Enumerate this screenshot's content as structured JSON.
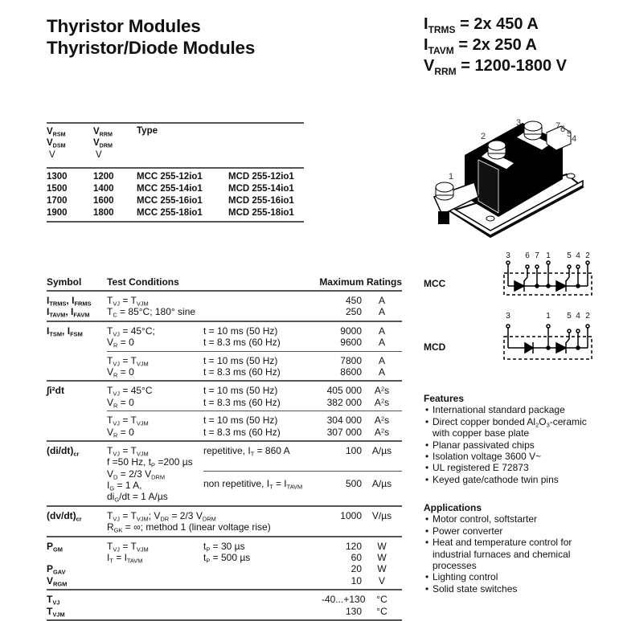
{
  "title": {
    "line1": "Thyristor Modules",
    "line2": "Thyristor/Diode Modules"
  },
  "key_ratings": [
    [
      "I",
      {
        "sub": "TRMS"
      },
      " = 2x 450 A"
    ],
    [
      "I",
      {
        "sub": "TAVM"
      },
      " = 2x 250 A"
    ],
    [
      "V",
      {
        "sub": "RRM"
      },
      " = 1200-1800 V"
    ]
  ],
  "type_table": {
    "col1": [
      [
        "V",
        {
          "sub": "RSM"
        }
      ],
      [
        "V",
        {
          "sub": "DSM"
        }
      ]
    ],
    "col2": [
      [
        "V",
        {
          "sub": "RRM"
        }
      ],
      [
        "V",
        {
          "sub": "DRM"
        }
      ]
    ],
    "unit1": "V",
    "unit2": "V",
    "type_header": "Type",
    "rows": [
      [
        "1300",
        "1200",
        "MCC 255-12io1",
        "MCD 255-12io1"
      ],
      [
        "1500",
        "1400",
        "MCC 255-14io1",
        "MCD 255-14io1"
      ],
      [
        "1700",
        "1600",
        "MCC 255-16io1",
        "MCD 255-16io1"
      ],
      [
        "1900",
        "1800",
        "MCC 255-18io1",
        "MCD 255-18io1"
      ]
    ]
  },
  "module_pins": [
    "1",
    "2",
    "3",
    "7",
    "6",
    "5",
    "4"
  ],
  "circuits": {
    "mcc": {
      "label": "MCC",
      "pins": [
        "3",
        "6",
        "7",
        "1",
        "5",
        "4",
        "2"
      ]
    },
    "mcd": {
      "label": "MCD",
      "pins": [
        "3",
        "1",
        "5",
        "4",
        "2"
      ]
    }
  },
  "ratings": {
    "headers": {
      "symbol": "Symbol",
      "conditions": "Test Conditions",
      "max": "Maximum Ratings"
    },
    "groups": [
      {
        "symbol": [
          [
            "I",
            {
              "sub": "TRMS"
            },
            ", I",
            {
              "sub": "FRMS"
            }
          ],
          [
            "I",
            {
              "sub": "TAVM"
            },
            ", I",
            {
              "sub": "FAVM"
            }
          ]
        ],
        "subs": [
          {
            "cond": [
              [
                "T",
                {
                  "sub": "VJ"
                },
                " = T",
                {
                  "sub": "VJM"
                }
              ],
              [
                "T",
                {
                  "sub": "C"
                },
                " = 85°C; 180° sine"
              ]
            ],
            "cond2": [],
            "values": [
              "450",
              "250"
            ],
            "units": [
              "A",
              "A"
            ]
          }
        ]
      },
      {
        "symbol": [
          [
            "I",
            {
              "sub": "TSM"
            },
            ", I",
            {
              "sub": "FSM"
            }
          ]
        ],
        "subs": [
          {
            "cond": [
              [
                "T",
                {
                  "sub": "VJ"
                },
                " = 45°C;"
              ],
              [
                "V",
                {
                  "sub": "R"
                },
                " = 0"
              ]
            ],
            "cond2": [
              [
                "t = 10 ms  (50 Hz)"
              ],
              [
                "t = 8.3 ms (60 Hz)"
              ]
            ],
            "values": [
              "9000",
              "9600"
            ],
            "units": [
              "A",
              "A"
            ]
          },
          {
            "cond": [
              [
                "T",
                {
                  "sub": "VJ"
                },
                " = T",
                {
                  "sub": "VJM"
                }
              ],
              [
                "V",
                {
                  "sub": "R"
                },
                " = 0"
              ]
            ],
            "cond2": [
              [
                "t = 10 ms  (50 Hz)"
              ],
              [
                "t = 8.3 ms (60 Hz)"
              ]
            ],
            "values": [
              "7800",
              "8600"
            ],
            "units": [
              "A",
              "A"
            ]
          }
        ]
      },
      {
        "symbol": [
          [
            "∫i²dt"
          ]
        ],
        "subs": [
          {
            "cond": [
              [
                "T",
                {
                  "sub": "VJ"
                },
                " = 45°C"
              ],
              [
                "V",
                {
                  "sub": "R"
                },
                " = 0"
              ]
            ],
            "cond2": [
              [
                "t = 10 ms  (50 Hz)"
              ],
              [
                "t = 8.3 ms (60 Hz)"
              ]
            ],
            "values": [
              "405 000",
              "382 000"
            ],
            "units": [
              [
                "A",
                {
                  "sup": "2"
                },
                "s"
              ],
              [
                "A",
                {
                  "sup": "2"
                },
                "s"
              ]
            ]
          },
          {
            "cond": [
              [
                "T",
                {
                  "sub": "VJ"
                },
                " = T",
                {
                  "sub": "VJM"
                }
              ],
              [
                "V",
                {
                  "sub": "R"
                },
                " = 0"
              ]
            ],
            "cond2": [
              [
                "t = 10 ms  (50 Hz)"
              ],
              [
                "t = 8.3 ms (60 Hz)"
              ]
            ],
            "values": [
              "304 000",
              "307 000"
            ],
            "units": [
              [
                "A",
                {
                  "sup": "2"
                },
                "s"
              ],
              [
                "A",
                {
                  "sup": "2"
                },
                "s"
              ]
            ]
          }
        ]
      },
      {
        "symbol": [
          [
            "(di/dt)",
            {
              "sub": "cr"
            }
          ]
        ],
        "cond": [
          [
            "T",
            {
              "sub": "VJ"
            },
            " = T",
            {
              "sub": "VJM"
            }
          ],
          [
            "f =50 Hz, t",
            {
              "sub": "P"
            },
            " =200 µs"
          ],
          [
            "V",
            {
              "sub": "D"
            },
            " = 2/3 V",
            {
              "sub": "DRM"
            }
          ],
          [
            "I",
            {
              "sub": "G"
            },
            " = 1 A,"
          ],
          [
            "di",
            {
              "sub": "G"
            },
            "/dt = 1 A/µs"
          ]
        ],
        "subs": [
          {
            "cond2": [
              [
                "repetitive, I",
                {
                  "sub": "T"
                },
                " = 860 A"
              ],
              [
                ""
              ]
            ],
            "values": [
              "100",
              ""
            ],
            "units": [
              "A/µs",
              ""
            ]
          },
          {
            "cond2": [
              [
                "non repetitive, I",
                {
                  "sub": "T"
                },
                " = I",
                {
                  "sub": "TAVM"
                }
              ],
              [
                ""
              ]
            ],
            "values": [
              "500",
              ""
            ],
            "units": [
              "A/µs",
              ""
            ]
          }
        ]
      },
      {
        "symbol": [
          [
            "(dv/dt)",
            {
              "sub": "cr"
            }
          ]
        ],
        "subs": [
          {
            "cond": [
              [
                "T",
                {
                  "sub": "VJ"
                },
                " = T",
                {
                  "sub": "VJM"
                },
                ";  V",
                {
                  "sub": "DR"
                },
                " = 2/3 V",
                {
                  "sub": "DRM"
                }
              ],
              [
                "R",
                {
                  "sub": "GK"
                },
                " = ∞; method 1 (linear voltage rise)"
              ]
            ],
            "cond2": [],
            "values": [
              "1000",
              ""
            ],
            "units": [
              "V/µs",
              ""
            ]
          }
        ]
      },
      {
        "symbol": [
          [
            "P",
            {
              "sub": "GM"
            }
          ],
          [
            ""
          ],
          [
            "P",
            {
              "sub": "GAV"
            }
          ],
          [
            "V",
            {
              "sub": "RGM"
            }
          ]
        ],
        "subs": [
          {
            "cond": [
              [
                "T",
                {
                  "sub": "VJ"
                },
                " = T",
                {
                  "sub": "VJM"
                }
              ],
              [
                "I",
                {
                  "sub": "T"
                },
                " = I",
                {
                  "sub": "TAVM"
                }
              ]
            ],
            "cond2": [
              [
                "t",
                {
                  "sub": "P"
                },
                " =    30 µs"
              ],
              [
                "t",
                {
                  "sub": "P"
                },
                " = 500 µs"
              ]
            ],
            "values": [
              "120",
              "60",
              "20",
              "10"
            ],
            "units": [
              "W",
              "W",
              "W",
              "V"
            ]
          }
        ]
      },
      {
        "symbol": [
          [
            "T",
            {
              "sub": "VJ"
            }
          ],
          [
            "T",
            {
              "sub": "VJM"
            }
          ]
        ],
        "subs": [
          {
            "cond": [],
            "cond2": [],
            "values": [
              "-40...+130",
              "130"
            ],
            "units": [
              "°C",
              "°C"
            ]
          }
        ]
      }
    ]
  },
  "features": {
    "heading": "Features",
    "items": [
      [
        "International standard package"
      ],
      [
        "Direct copper bonded Al",
        {
          "sub": "2"
        },
        "O",
        {
          "sub": "3"
        },
        "-ceramic",
        {
          "br": true
        },
        "with copper base plate"
      ],
      [
        "Planar passivated chips"
      ],
      [
        "Isolation voltage 3600 V~"
      ],
      [
        "UL registered E 72873"
      ],
      [
        "Keyed gate/cathode twin pins"
      ]
    ]
  },
  "applications": {
    "heading": "Applications",
    "items": [
      [
        "Motor control, softstarter"
      ],
      [
        "Power converter"
      ],
      [
        "Heat and temperature control for",
        {
          "br": true
        },
        "industrial furnaces and chemical",
        {
          "br": true
        },
        "processes"
      ],
      [
        "Lighting control"
      ],
      [
        "Solid state switches"
      ]
    ]
  }
}
